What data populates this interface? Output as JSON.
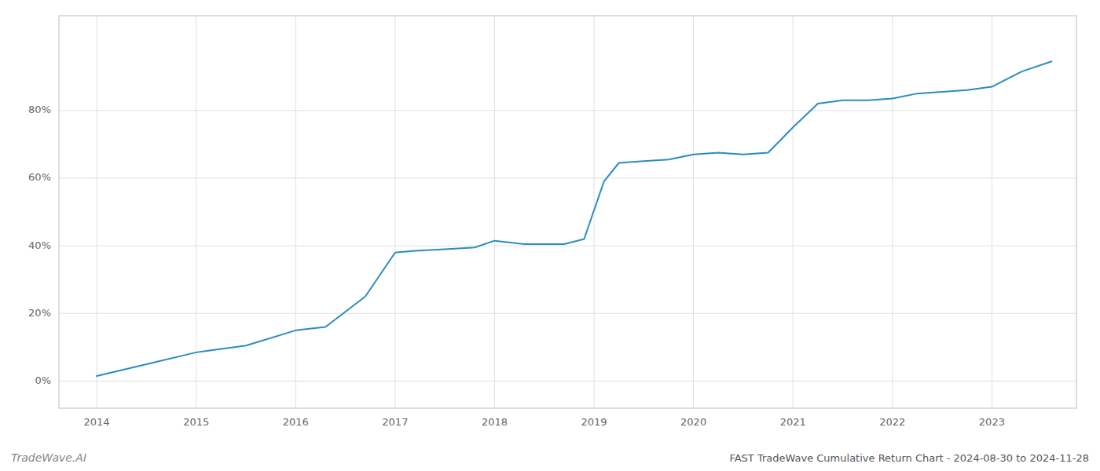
{
  "chart_data": {
    "type": "line",
    "title": "FAST TradeWave Cumulative Return Chart - 2024-08-30 to 2024-11-28",
    "annotations": [
      {
        "text": "TradeWave.AI"
      }
    ],
    "color": "#2b8cbe",
    "x": [
      2014.0,
      2014.5,
      2015.0,
      2015.5,
      2016.0,
      2016.3,
      2016.7,
      2017.0,
      2017.2,
      2017.5,
      2017.8,
      2018.0,
      2018.3,
      2018.7,
      2018.9,
      2019.1,
      2019.25,
      2019.5,
      2019.75,
      2020.0,
      2020.25,
      2020.5,
      2020.75,
      2021.0,
      2021.25,
      2021.5,
      2021.75,
      2022.0,
      2022.25,
      2022.5,
      2022.75,
      2023.0,
      2023.3,
      2023.6
    ],
    "values": [
      1.5,
      5.0,
      8.5,
      10.5,
      15.0,
      16.0,
      25.0,
      38.0,
      38.5,
      39.0,
      39.5,
      41.5,
      40.5,
      40.5,
      42.0,
      59.0,
      64.5,
      65.0,
      65.5,
      67.0,
      67.5,
      67.0,
      67.5,
      75.0,
      82.0,
      83.0,
      83.0,
      83.5,
      85.0,
      85.5,
      86.0,
      87.0,
      91.5,
      94.5
    ],
    "xlim": [
      2013.62,
      2023.85
    ],
    "ylim": [
      -8,
      108
    ],
    "xticks": [
      2014,
      2015,
      2016,
      2017,
      2018,
      2019,
      2020,
      2021,
      2022,
      2023
    ],
    "yticks": [
      {
        "value": 0,
        "label": "0%"
      },
      {
        "value": 20,
        "label": "20%"
      },
      {
        "value": 40,
        "label": "40%"
      },
      {
        "value": 60,
        "label": "60%"
      },
      {
        "value": 80,
        "label": "80%"
      }
    ],
    "grid": true
  }
}
